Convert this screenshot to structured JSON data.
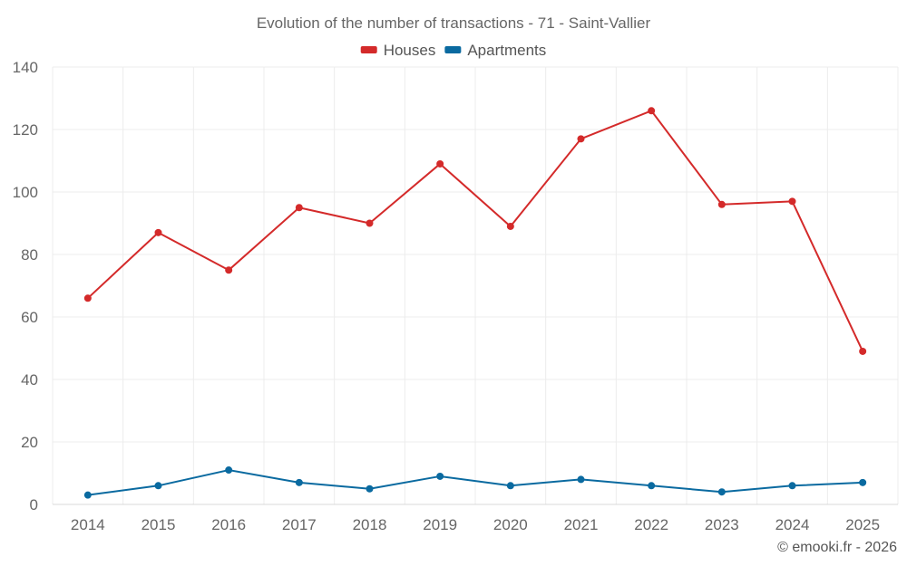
{
  "chart_data": {
    "type": "line",
    "title": "Evolution of the number of transactions - 71 - Saint-Vallier",
    "categories": [
      "2014",
      "2015",
      "2016",
      "2017",
      "2018",
      "2019",
      "2020",
      "2021",
      "2022",
      "2023",
      "2024",
      "2025"
    ],
    "series": [
      {
        "name": "Houses",
        "color": "#d42a2a",
        "values": [
          66,
          87,
          75,
          95,
          90,
          109,
          89,
          117,
          126,
          96,
          97,
          49
        ]
      },
      {
        "name": "Apartments",
        "color": "#0a6aa0",
        "values": [
          3,
          6,
          11,
          7,
          5,
          9,
          6,
          8,
          6,
          4,
          6,
          7
        ]
      }
    ],
    "ylim": [
      0,
      140
    ],
    "yticks": [
      0,
      20,
      40,
      60,
      80,
      100,
      120,
      140
    ],
    "grid": true,
    "legend": "top-center",
    "xlabel": "",
    "ylabel": ""
  },
  "credit": "© emooki.fr - 2026"
}
